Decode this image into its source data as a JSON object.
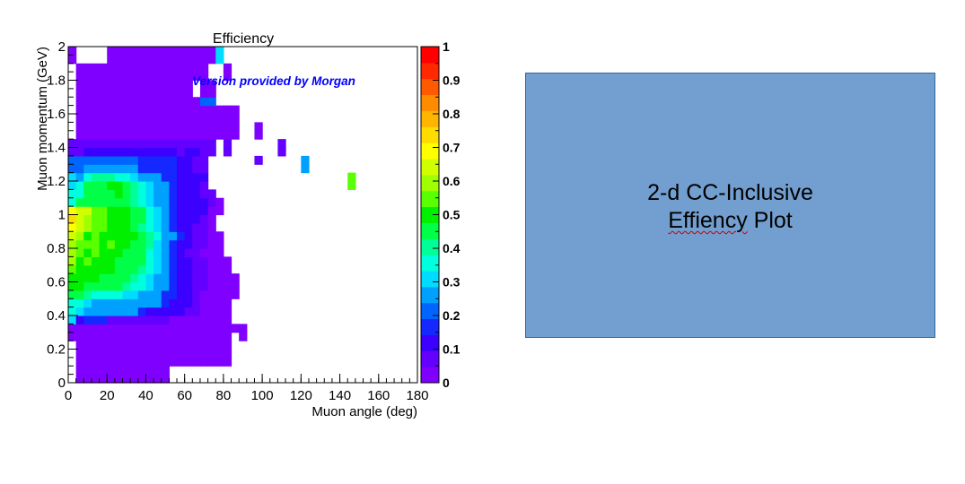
{
  "chart_data": {
    "type": "heatmap",
    "title": "Efficiency",
    "annotation": "Version provided by Morgan",
    "annotation_color": "#0000ff",
    "xlabel": "Muon angle (deg)",
    "ylabel": "Muon momentum (GeV)",
    "xlim": [
      0,
      180
    ],
    "ylim": [
      0,
      2
    ],
    "xticks": [
      "0",
      "20",
      "40",
      "60",
      "80",
      "100",
      "120",
      "140",
      "160",
      "180"
    ],
    "yticks": [
      "0",
      "0.2",
      "0.4",
      "0.6",
      "0.8",
      "1",
      "1.2",
      "1.4",
      "1.6",
      "1.8",
      "2"
    ],
    "zlim": [
      0,
      1
    ],
    "zticks": [
      "0",
      "0.1",
      "0.2",
      "0.3",
      "0.4",
      "0.5",
      "0.6",
      "0.7",
      "0.8",
      "0.9",
      "1"
    ],
    "palette": [
      "#8000ff",
      "#6400ff",
      "#3c00ff",
      "#1428ff",
      "#0064ff",
      "#00a0ff",
      "#00dcff",
      "#00ffdc",
      "#00ff96",
      "#00ff46",
      "#00f000",
      "#5aff00",
      "#a0ff00",
      "#d2ff00",
      "#ffff00",
      "#ffdc00",
      "#ffb400",
      "#ff8c00",
      "#ff5a00",
      "#ff2800",
      "#ff0000"
    ],
    "bin_width_x": 4,
    "bin_height_y": 0.05,
    "rows": [
      {
        "y": 0.0,
        "x0": 4,
        "values": [
          0.02,
          0.02,
          0.02,
          0.02,
          0.02,
          0.02,
          0.02,
          0.02,
          0.02,
          0.02,
          0.02,
          0.02
        ]
      },
      {
        "y": 0.05,
        "x0": 4,
        "values": [
          0.02,
          0.02,
          0.02,
          0.02,
          0.02,
          0.02,
          0.02,
          0.02,
          0.02,
          0.02,
          0.02,
          0.02
        ]
      },
      {
        "y": 0.1,
        "x0": 4,
        "values": [
          0.02,
          0.02,
          0.02,
          0.02,
          0.02,
          0.02,
          0.02,
          0.02,
          0.02,
          0.02,
          0.02,
          0.02,
          0.02,
          0.02,
          0.02,
          0.02,
          0.02,
          0.02,
          0.02,
          0.02
        ]
      },
      {
        "y": 0.15,
        "x0": 4,
        "values": [
          0.02,
          0.02,
          0.02,
          0.02,
          0.02,
          0.02,
          0.02,
          0.02,
          0.02,
          0.02,
          0.02,
          0.02,
          0.02,
          0.02,
          0.02,
          0.02,
          0.02,
          0.02,
          0.02,
          0.02
        ]
      },
      {
        "y": 0.2,
        "x0": 4,
        "values": [
          0.02,
          0.02,
          0.02,
          0.02,
          0.02,
          0.02,
          0.02,
          0.02,
          0.02,
          0.02,
          0.02,
          0.02,
          0.02,
          0.02,
          0.02,
          0.02,
          0.02,
          0.02,
          0.02,
          0.02
        ]
      },
      {
        "y": 0.25,
        "x0": 0,
        "values": [
          0.03,
          0.03,
          0.03,
          0.03,
          0.03,
          0.03,
          0.03,
          0.03,
          0.03,
          0.03,
          0.03,
          0.03,
          0.03,
          0.03,
          0.03,
          0.03,
          0.03,
          0.03,
          0.03,
          0.03,
          0.03,
          null,
          0.03
        ]
      },
      {
        "y": 0.3,
        "x0": 0,
        "values": [
          0.03,
          0.03,
          0.03,
          0.03,
          0.03,
          0.03,
          0.03,
          0.03,
          0.03,
          0.03,
          0.03,
          0.03,
          0.03,
          0.03,
          0.03,
          0.03,
          0.03,
          0.03,
          0.03,
          0.03,
          0.03,
          0.03,
          0.03
        ]
      },
      {
        "y": 0.35,
        "x0": 0,
        "values": [
          0.3,
          0.1,
          0.17,
          0.17,
          0.17,
          0.05,
          0.05,
          0.05,
          0.05,
          0.05,
          0.05,
          0.05,
          0.05,
          0.03,
          0.03,
          0.03,
          0.03,
          0.03,
          0.03,
          0.03,
          0.03
        ]
      },
      {
        "y": 0.4,
        "x0": 0,
        "values": [
          0.36,
          0.3,
          0.28,
          0.28,
          0.28,
          0.28,
          0.28,
          0.28,
          0.28,
          0.17,
          0.14,
          0.14,
          0.14,
          0.1,
          0.1,
          0.05,
          0.05,
          0.03,
          0.03,
          0.03,
          0.03
        ]
      },
      {
        "y": 0.45,
        "x0": 0,
        "values": [
          0.36,
          0.34,
          0.3,
          0.28,
          0.28,
          0.28,
          0.28,
          0.28,
          0.28,
          0.28,
          0.24,
          0.24,
          0.17,
          0.14,
          0.14,
          0.1,
          0.05,
          0.03,
          0.03,
          0.03,
          0.03
        ]
      },
      {
        "y": 0.5,
        "x0": 0,
        "values": [
          0.44,
          0.44,
          0.41,
          0.36,
          0.36,
          0.36,
          0.36,
          0.3,
          0.3,
          0.28,
          0.28,
          0.24,
          0.17,
          0.17,
          0.1,
          0.1,
          0.05,
          0.03,
          0.03,
          0.03,
          0.03,
          0.03
        ]
      },
      {
        "y": 0.55,
        "x0": 0,
        "values": [
          0.5,
          0.5,
          0.47,
          0.47,
          0.44,
          0.44,
          0.44,
          0.41,
          0.36,
          0.36,
          0.3,
          0.28,
          0.24,
          0.17,
          0.1,
          0.1,
          0.05,
          0.05,
          0.03,
          0.03,
          0.03,
          0.03
        ]
      },
      {
        "y": 0.6,
        "x0": 0,
        "values": [
          0.5,
          0.5,
          0.5,
          0.5,
          0.47,
          0.47,
          0.44,
          0.44,
          0.41,
          0.36,
          0.3,
          0.28,
          0.24,
          0.17,
          0.14,
          0.1,
          0.05,
          0.05,
          0.03,
          0.03,
          0.03,
          0.03
        ]
      },
      {
        "y": 0.65,
        "x0": 0,
        "values": [
          0.55,
          0.5,
          0.5,
          0.5,
          0.5,
          0.5,
          0.47,
          0.47,
          0.44,
          0.41,
          0.36,
          0.3,
          0.24,
          0.17,
          0.14,
          0.1,
          0.05,
          0.05,
          0.03,
          0.03,
          0.03
        ]
      },
      {
        "y": 0.7,
        "x0": 0,
        "values": [
          0.58,
          0.5,
          0.55,
          0.5,
          0.5,
          0.5,
          0.47,
          0.47,
          0.44,
          0.44,
          0.36,
          0.3,
          0.24,
          0.17,
          0.14,
          0.1,
          0.05,
          0.05,
          0.03,
          0.03,
          0.03
        ]
      },
      {
        "y": 0.75,
        "x0": 0,
        "values": [
          0.6,
          0.55,
          0.5,
          0.55,
          0.5,
          0.5,
          0.5,
          0.47,
          0.47,
          0.44,
          0.36,
          0.3,
          0.24,
          0.17,
          0.14,
          0.05,
          0.05,
          0.03,
          0.03,
          0.03
        ]
      },
      {
        "y": 0.8,
        "x0": 0,
        "values": [
          0.58,
          0.55,
          0.55,
          0.55,
          0.5,
          0.55,
          0.5,
          0.5,
          0.47,
          0.47,
          0.41,
          0.3,
          0.24,
          0.17,
          0.14,
          0.1,
          0.05,
          0.05,
          0.03,
          0.03
        ]
      },
      {
        "y": 0.85,
        "x0": 0,
        "values": [
          0.62,
          0.58,
          0.5,
          0.55,
          0.5,
          0.5,
          0.5,
          0.5,
          0.5,
          0.47,
          0.41,
          0.36,
          0.28,
          0.24,
          0.17,
          0.1,
          0.05,
          0.05,
          0.03,
          0.03
        ]
      },
      {
        "y": 0.9,
        "x0": 0,
        "values": [
          0.68,
          0.62,
          0.58,
          0.55,
          0.55,
          0.5,
          0.5,
          0.5,
          0.47,
          0.41,
          0.36,
          0.3,
          0.24,
          0.17,
          0.14,
          0.1,
          0.05,
          0.05,
          0.03
        ]
      },
      {
        "y": 0.95,
        "x0": 0,
        "values": [
          0.76,
          0.62,
          0.58,
          0.55,
          0.55,
          0.5,
          0.5,
          0.5,
          0.47,
          0.44,
          0.36,
          0.3,
          0.24,
          0.17,
          0.14,
          0.1,
          0.1,
          0.05,
          0.03
        ]
      },
      {
        "y": 1.0,
        "x0": 0,
        "values": [
          0.7,
          0.62,
          0.62,
          0.55,
          0.55,
          0.5,
          0.5,
          0.5,
          0.47,
          0.44,
          0.36,
          0.3,
          0.24,
          0.17,
          0.14,
          0.1,
          0.1,
          0.1,
          0.03,
          0.03
        ]
      },
      {
        "y": 1.05,
        "x0": 0,
        "values": [
          0.36,
          0.44,
          0.44,
          0.47,
          0.47,
          0.47,
          0.44,
          0.44,
          0.41,
          0.36,
          0.3,
          0.28,
          0.24,
          0.17,
          0.14,
          0.1,
          0.1,
          0.1,
          0.05,
          0.03
        ]
      },
      {
        "y": 1.1,
        "x0": 0,
        "values": [
          0.36,
          0.36,
          0.44,
          0.47,
          0.47,
          0.47,
          0.5,
          0.44,
          0.41,
          0.36,
          0.3,
          0.28,
          0.24,
          0.17,
          0.14,
          0.1,
          0.1,
          0.05,
          0.05
        ]
      },
      {
        "y": 1.15,
        "x0": 0,
        "values": [
          0.3,
          0.36,
          0.44,
          0.47,
          0.47,
          0.5,
          0.5,
          0.47,
          0.41,
          0.36,
          0.3,
          0.24,
          0.24,
          0.17,
          0.14,
          0.1,
          0.1,
          0.05,
          null,
          null,
          null,
          null,
          null,
          null,
          null,
          null,
          null,
          null,
          null,
          null,
          null,
          null,
          null,
          null,
          null,
          null,
          0.55
        ]
      },
      {
        "y": 1.2,
        "x0": 0,
        "values": [
          0.3,
          0.28,
          0.36,
          0.41,
          0.41,
          0.41,
          0.36,
          0.36,
          0.3,
          0.28,
          0.24,
          0.24,
          0.17,
          0.17,
          0.14,
          0.1,
          0.1,
          0.1,
          null,
          null,
          null,
          null,
          null,
          null,
          null,
          null,
          null,
          null,
          null,
          null,
          null,
          null,
          null,
          null,
          null,
          null,
          0.55
        ]
      },
      {
        "y": 1.25,
        "x0": 0,
        "values": [
          0.2,
          0.2,
          0.24,
          0.24,
          0.24,
          0.24,
          0.24,
          0.24,
          0.24,
          0.17,
          0.17,
          0.17,
          0.17,
          0.17,
          0.1,
          0.1,
          0.05,
          0.05,
          null,
          null,
          null,
          null,
          null,
          null,
          null,
          null,
          null,
          null,
          null,
          null,
          0.24
        ]
      },
      {
        "y": 1.3,
        "x0": 0,
        "values": [
          0.2,
          0.2,
          0.2,
          0.2,
          0.2,
          0.2,
          0.2,
          0.2,
          0.2,
          0.17,
          0.17,
          0.17,
          0.17,
          0.17,
          0.1,
          0.1,
          0.05,
          0.05,
          null,
          null,
          null,
          null,
          null,
          null,
          0.05,
          null,
          null,
          null,
          null,
          null,
          0.24
        ]
      },
      {
        "y": 1.35,
        "x0": 0,
        "values": [
          0.05,
          0.05,
          0.1,
          0.1,
          0.1,
          0.1,
          0.1,
          0.1,
          0.1,
          0.1,
          0.1,
          0.1,
          0.1,
          0.1,
          0.05,
          0.1,
          0.1,
          0.05,
          0.05,
          null,
          0.05,
          null,
          null,
          null,
          null,
          null,
          null,
          0.05
        ]
      },
      {
        "y": 1.4,
        "x0": 0,
        "values": [
          0.05,
          0.05,
          0.05,
          0.05,
          0.05,
          0.05,
          0.05,
          0.05,
          0.05,
          0.05,
          0.05,
          0.05,
          0.05,
          0.05,
          0.05,
          0.05,
          0.05,
          0.05,
          0.05,
          null,
          0.05,
          null,
          null,
          null,
          null,
          null,
          null,
          0.05
        ]
      },
      {
        "y": 1.45,
        "x0": 4,
        "values": [
          0.03,
          0.03,
          0.03,
          0.03,
          0.03,
          0.03,
          0.03,
          0.03,
          0.03,
          0.03,
          0.03,
          0.03,
          0.03,
          0.03,
          0.03,
          0.03,
          0.03,
          0.03,
          0.03,
          0.03,
          0.03,
          null,
          null,
          0.03
        ]
      },
      {
        "y": 1.5,
        "x0": 4,
        "values": [
          0.03,
          0.03,
          0.03,
          0.03,
          0.03,
          0.03,
          0.03,
          0.03,
          0.03,
          0.03,
          0.03,
          0.03,
          0.03,
          0.03,
          0.03,
          0.03,
          0.03,
          0.03,
          0.03,
          0.03,
          0.03,
          null,
          null,
          0.03
        ]
      },
      {
        "y": 1.55,
        "x0": 4,
        "values": [
          0.03,
          0.03,
          0.03,
          0.03,
          0.03,
          0.03,
          0.03,
          0.03,
          0.03,
          0.03,
          0.03,
          0.03,
          0.03,
          0.03,
          0.03,
          0.03,
          0.03,
          0.03,
          0.03,
          0.03,
          0.03
        ]
      },
      {
        "y": 1.6,
        "x0": 4,
        "values": [
          0.03,
          0.03,
          0.03,
          0.03,
          0.03,
          0.03,
          0.03,
          0.03,
          0.03,
          0.03,
          0.03,
          0.03,
          0.03,
          0.03,
          0.03,
          0.03,
          0.03,
          0.03,
          0.03,
          0.03,
          0.03
        ]
      },
      {
        "y": 1.65,
        "x0": 4,
        "values": [
          0.03,
          0.03,
          0.03,
          0.03,
          0.03,
          0.03,
          0.03,
          0.03,
          0.03,
          0.03,
          0.03,
          0.03,
          0.03,
          0.03,
          0.03,
          0.03,
          0.2,
          0.2
        ]
      },
      {
        "y": 1.7,
        "x0": 4,
        "values": [
          0.03,
          0.03,
          0.03,
          0.03,
          0.03,
          0.03,
          0.03,
          0.03,
          0.03,
          0.03,
          0.03,
          0.03,
          0.03,
          0.03,
          0.03,
          null,
          0.03,
          0.03
        ]
      },
      {
        "y": 1.75,
        "x0": 4,
        "values": [
          0.03,
          0.03,
          0.03,
          0.03,
          0.03,
          0.03,
          0.03,
          0.03,
          0.03,
          0.03,
          0.03,
          0.03,
          0.03,
          0.03,
          0.03,
          null,
          0.03,
          0.03
        ]
      },
      {
        "y": 1.8,
        "x0": 4,
        "values": [
          0.03,
          0.03,
          0.03,
          0.03,
          0.03,
          0.03,
          0.03,
          0.03,
          0.03,
          0.03,
          0.03,
          0.03,
          0.03,
          0.03,
          0.03,
          0.03,
          0.03,
          null,
          null,
          0.03
        ]
      },
      {
        "y": 1.85,
        "x0": 4,
        "values": [
          0.03,
          0.03,
          0.03,
          0.03,
          0.03,
          0.03,
          0.03,
          0.03,
          0.03,
          0.03,
          0.03,
          0.03,
          0.03,
          0.03,
          0.03,
          0.03,
          0.03,
          null,
          null,
          0.03
        ]
      },
      {
        "y": 1.9,
        "x0": 0,
        "values": [
          0.03,
          null,
          null,
          null,
          null,
          0.03,
          0.03,
          0.03,
          0.03,
          0.03,
          0.03,
          0.03,
          0.03,
          0.03,
          0.03,
          0.03,
          0.03,
          0.03,
          0.03,
          0.3,
          null
        ]
      },
      {
        "y": 1.95,
        "x0": 0,
        "values": [
          0.03,
          null,
          null,
          null,
          null,
          0.03,
          0.03,
          0.03,
          0.03,
          0.03,
          0.03,
          0.03,
          0.03,
          0.03,
          0.03,
          0.03,
          0.03,
          0.03,
          0.03,
          0.3
        ]
      }
    ]
  },
  "callout": {
    "line1": "2-d CC-Inclusive",
    "line2_word1": "Effiency",
    "line2_word2": " Plot"
  }
}
